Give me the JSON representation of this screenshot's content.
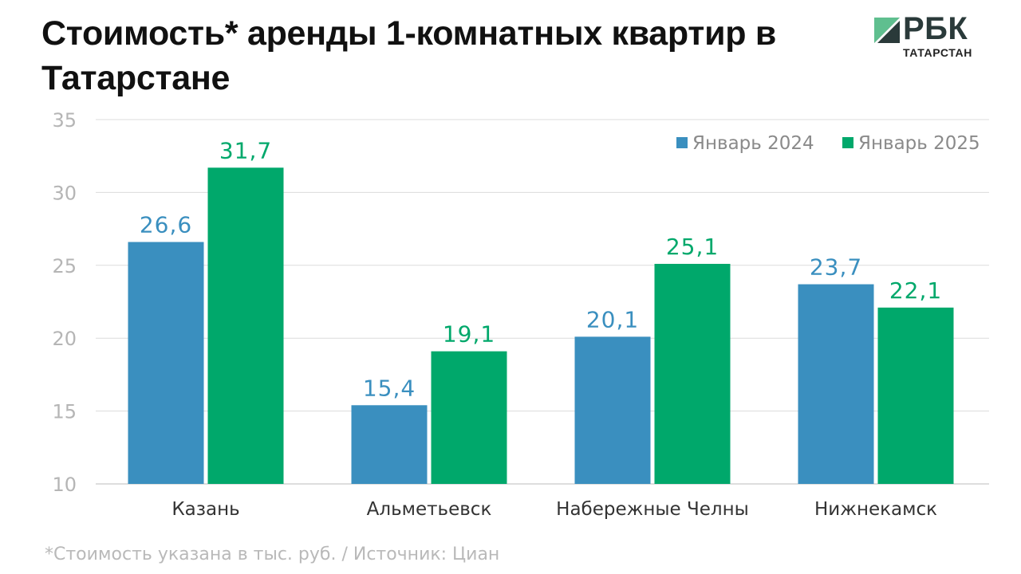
{
  "header": {
    "title": "Стоимость* аренды 1-комнатных квартир в Татарстане"
  },
  "logo": {
    "brand": "РБК",
    "region": "ТАТАРСТАН",
    "colors": {
      "green": "#2e9a6a",
      "dark": "#2a3a3a"
    }
  },
  "footnote": "*Стоимость указана в тыс. руб.  / Источник: Циан",
  "chart_data": {
    "type": "bar",
    "categories": [
      "Казань",
      "Альметьевск",
      "Набережные Челны",
      "Нижнекамск"
    ],
    "series": [
      {
        "name": "Январь 2024",
        "values": [
          26.6,
          15.4,
          20.1,
          23.7
        ],
        "labels": [
          "26,6",
          "15,4",
          "20,1",
          "23,7"
        ],
        "color": "#3a8fbf"
      },
      {
        "name": "Январь 2025",
        "values": [
          31.7,
          19.1,
          25.1,
          22.1
        ],
        "labels": [
          "31,7",
          "19,1",
          "25,1",
          "22,1"
        ],
        "color": "#00a86b"
      }
    ],
    "ylim": [
      10,
      35
    ],
    "yticks": [
      10,
      15,
      20,
      25,
      30,
      35
    ],
    "grid": true,
    "legend": "top-right",
    "xlabel": "",
    "ylabel": ""
  }
}
